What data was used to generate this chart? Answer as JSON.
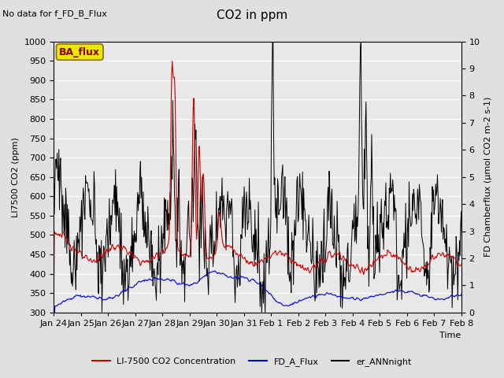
{
  "title": "CO2 in ppm",
  "top_left_text": "No data for f_FD_B_Flux",
  "legend_box_text": "BA_flux",
  "xlabel": "Time",
  "ylabel_left": "LI7500 CO2 (ppm)",
  "ylabel_right": "FD Chamberflux (μmol CO2 m-2 s-1)",
  "ylim_left": [
    300,
    1000
  ],
  "ylim_right": [
    0.0,
    10.0
  ],
  "xtick_labels": [
    "Jan 24",
    "Jan 25",
    "Jan 26",
    "Jan 27",
    "Jan 28",
    "Jan 29",
    "Jan 30",
    "Jan 31",
    "Feb 1",
    "Feb 2",
    "Feb 3",
    "Feb 4",
    "Feb 5",
    "Feb 6",
    "Feb 7",
    "Feb 8"
  ],
  "background_color": "#e0e0e0",
  "plot_bg_color": "#e8e8e8",
  "grid_color": "#ffffff",
  "line_red": "#cc0000",
  "line_blue": "#0000cc",
  "line_black": "#000000",
  "legend_box_facecolor": "#e8e800",
  "legend_box_edgecolor": "#8b6914",
  "legend_box_textcolor": "#8b0000",
  "legend_fontsize": 8,
  "title_fontsize": 11,
  "label_fontsize": 8,
  "tick_fontsize": 8,
  "n_points": 768,
  "n_days": 16
}
